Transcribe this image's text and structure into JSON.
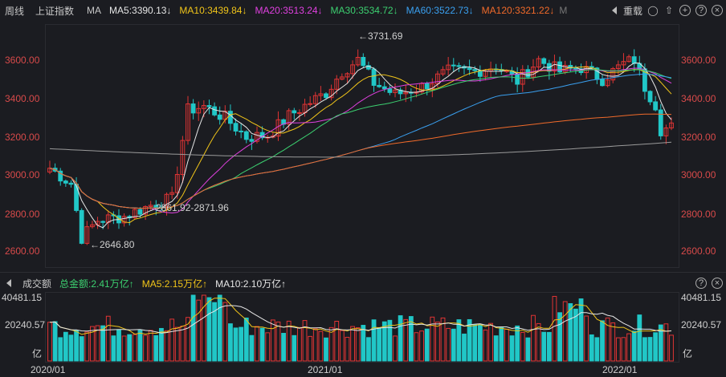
{
  "topbar": {
    "period": "周线",
    "index": "上证指数",
    "ma_label": "MA",
    "indicators": [
      {
        "label": "MA5:3390.13",
        "arrow": "↓",
        "color": "#e6e6e6"
      },
      {
        "label": "MA10:3439.84",
        "arrow": "↓",
        "color": "#f0c419"
      },
      {
        "label": "MA20:3513.24",
        "arrow": "↓",
        "color": "#e040e0"
      },
      {
        "label": "MA30:3534.72",
        "arrow": "↓",
        "color": "#3cd070"
      },
      {
        "label": "MA60:3522.73",
        "arrow": "↓",
        "color": "#3aa0f0"
      },
      {
        "label": "MA120:3321.22",
        "arrow": "↓",
        "color": "#f06a2a"
      }
    ],
    "more": "M",
    "reweight": "重载"
  },
  "volbar": {
    "title": "成交额",
    "items": [
      {
        "label": "总金额:2.41万亿",
        "arrow": "↑",
        "color": "#3cd070"
      },
      {
        "label": "MA5:2.15万亿",
        "arrow": "↑",
        "color": "#f0c419"
      },
      {
        "label": "MA10:2.10万亿",
        "arrow": "↑",
        "color": "#e6e6e6"
      }
    ]
  },
  "main_axis": {
    "ticks": [
      "3600.00",
      "3400.00",
      "3200.00",
      "3000.00",
      "2800.00",
      "2600.00"
    ]
  },
  "vol_axis": {
    "top": "40481.15",
    "mid": "20240.57",
    "unit": "亿"
  },
  "x_axis": {
    "labels": [
      "2020/01",
      "2021/01",
      "2022/01"
    ]
  },
  "annotations": {
    "high": "←3731.69",
    "low": "←2646.80",
    "range": "2861.92-2871.96"
  },
  "colors": {
    "up": "#e03434",
    "down": "#21c7c7",
    "ma120": "#f06a2a",
    "ma250": "#9a9a9a"
  },
  "chart_data": {
    "type": "candlestick",
    "title": "上证指数 周线",
    "price_range": [
      2560,
      3780
    ],
    "volume_max": 40481.15,
    "x_labels": [
      "2020/01",
      "2021/01",
      "2022/01"
    ],
    "high": 3731.69,
    "low": 2646.8,
    "moving_averages": {
      "MA5": 3390.13,
      "MA10": 3439.84,
      "MA20": 3513.24,
      "MA30": 3534.72,
      "MA60": 3522.73,
      "MA120": 3321.22
    },
    "volume": {
      "total": "2.41万亿",
      "MA5": "2.15万亿",
      "MA10": "2.10万亿"
    }
  }
}
